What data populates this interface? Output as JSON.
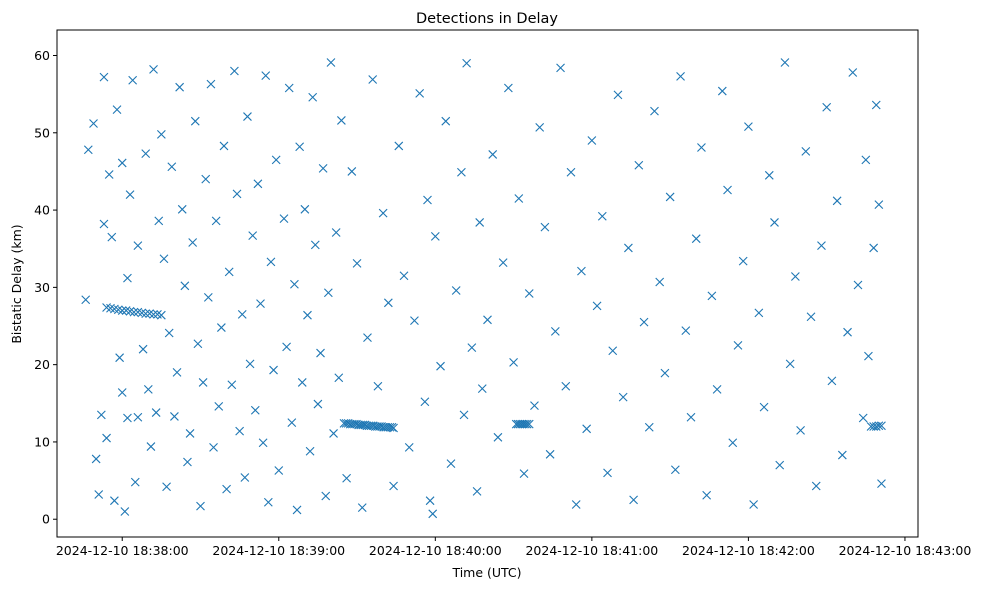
{
  "chart_data": {
    "type": "scatter",
    "title": "Detections in Delay",
    "xlabel": "Time (UTC)",
    "ylabel": "Bistatic Delay (km)",
    "x_units": "seconds after 2024-12-10 18:38:00",
    "xlim": [
      -25,
      305
    ],
    "ylim": [
      -2.3,
      63.3
    ],
    "x_ticks": [
      {
        "value": 0,
        "label": "2024-12-10 18:38:00"
      },
      {
        "value": 60,
        "label": "2024-12-10 18:39:00"
      },
      {
        "value": 120,
        "label": "2024-12-10 18:40:00"
      },
      {
        "value": 180,
        "label": "2024-12-10 18:41:00"
      },
      {
        "value": 240,
        "label": "2024-12-10 18:42:00"
      },
      {
        "value": 300,
        "label": "2024-12-10 18:43:00"
      }
    ],
    "y_ticks": [
      {
        "value": 0,
        "label": "0"
      },
      {
        "value": 10,
        "label": "10"
      },
      {
        "value": 20,
        "label": "20"
      },
      {
        "value": 30,
        "label": "30"
      },
      {
        "value": 40,
        "label": "40"
      },
      {
        "value": 50,
        "label": "50"
      },
      {
        "value": 60,
        "label": "60"
      }
    ],
    "marker": "x",
    "color": "#1f77b4",
    "grid": false,
    "series": [
      {
        "name": "detections",
        "points": [
          [
            -6,
            27.4
          ],
          [
            -4.5,
            27.3
          ],
          [
            -3,
            27.2
          ],
          [
            -1.5,
            27.1
          ],
          [
            0,
            27.0
          ],
          [
            1.5,
            27.0
          ],
          [
            3,
            26.9
          ],
          [
            4.5,
            26.8
          ],
          [
            6,
            26.8
          ],
          [
            7.5,
            26.7
          ],
          [
            9,
            26.6
          ],
          [
            10.5,
            26.6
          ],
          [
            12,
            26.5
          ],
          [
            13.5,
            26.5
          ],
          [
            15,
            26.4
          ],
          [
            85,
            12.4
          ],
          [
            85.8,
            12.4
          ],
          [
            86.6,
            12.4
          ],
          [
            87.4,
            12.3
          ],
          [
            88.2,
            12.3
          ],
          [
            89,
            12.3
          ],
          [
            89.8,
            12.3
          ],
          [
            90.6,
            12.2
          ],
          [
            91.4,
            12.2
          ],
          [
            92.2,
            12.2
          ],
          [
            93,
            12.2
          ],
          [
            93.8,
            12.1
          ],
          [
            94.6,
            12.1
          ],
          [
            95.4,
            12.1
          ],
          [
            96.2,
            12.1
          ],
          [
            97,
            12.0
          ],
          [
            97.8,
            12.0
          ],
          [
            98.6,
            12.0
          ],
          [
            99.4,
            12.0
          ],
          [
            100.2,
            11.9
          ],
          [
            101,
            11.9
          ],
          [
            101.8,
            11.9
          ],
          [
            102.6,
            11.9
          ],
          [
            103.4,
            11.9
          ],
          [
            104,
            11.8
          ],
          [
            151,
            12.3
          ],
          [
            151.7,
            12.3
          ],
          [
            152.4,
            12.3
          ],
          [
            153.1,
            12.3
          ],
          [
            153.8,
            12.3
          ],
          [
            154.5,
            12.3
          ],
          [
            155.2,
            12.3
          ],
          [
            156,
            12.3
          ],
          [
            287,
            12.0
          ],
          [
            288,
            12.0
          ],
          [
            289,
            12.0
          ],
          [
            290,
            12.1
          ],
          [
            291,
            12.1
          ],
          [
            -14,
            28.4
          ],
          [
            -13,
            47.8
          ],
          [
            -11,
            51.2
          ],
          [
            -10,
            7.8
          ],
          [
            -9,
            3.2
          ],
          [
            -8,
            13.5
          ],
          [
            -7,
            57.2
          ],
          [
            -7,
            38.2
          ],
          [
            -6,
            10.5
          ],
          [
            -5,
            44.6
          ],
          [
            -4,
            36.5
          ],
          [
            -3,
            2.4
          ],
          [
            -2,
            53.0
          ],
          [
            -1,
            20.9
          ],
          [
            0,
            16.4
          ],
          [
            0,
            46.1
          ],
          [
            1,
            1.0
          ],
          [
            2,
            13.1
          ],
          [
            2,
            31.2
          ],
          [
            3,
            42.0
          ],
          [
            4,
            56.8
          ],
          [
            5,
            4.8
          ],
          [
            6,
            35.4
          ],
          [
            6,
            13.2
          ],
          [
            8,
            22.0
          ],
          [
            9,
            47.3
          ],
          [
            10,
            16.8
          ],
          [
            11,
            9.4
          ],
          [
            12,
            58.2
          ],
          [
            13,
            13.8
          ],
          [
            14,
            38.6
          ],
          [
            15,
            49.8
          ],
          [
            16,
            33.7
          ],
          [
            17,
            4.2
          ],
          [
            18,
            24.1
          ],
          [
            19,
            45.6
          ],
          [
            20,
            13.3
          ],
          [
            21,
            19.0
          ],
          [
            22,
            55.9
          ],
          [
            23,
            40.1
          ],
          [
            24,
            30.2
          ],
          [
            25,
            7.4
          ],
          [
            26,
            11.1
          ],
          [
            27,
            35.8
          ],
          [
            28,
            51.5
          ],
          [
            29,
            22.7
          ],
          [
            30,
            1.7
          ],
          [
            31,
            17.7
          ],
          [
            32,
            44.0
          ],
          [
            33,
            28.7
          ],
          [
            34,
            56.3
          ],
          [
            35,
            9.3
          ],
          [
            36,
            38.6
          ],
          [
            37,
            14.6
          ],
          [
            38,
            24.8
          ],
          [
            39,
            48.3
          ],
          [
            40,
            3.9
          ],
          [
            41,
            32.0
          ],
          [
            42,
            17.4
          ],
          [
            43,
            58.0
          ],
          [
            44,
            42.1
          ],
          [
            45,
            11.4
          ],
          [
            46,
            26.5
          ],
          [
            47,
            5.4
          ],
          [
            48,
            52.1
          ],
          [
            49,
            20.1
          ],
          [
            50,
            36.7
          ],
          [
            51,
            14.1
          ],
          [
            52,
            43.4
          ],
          [
            53,
            27.9
          ],
          [
            54,
            9.9
          ],
          [
            55,
            57.4
          ],
          [
            56,
            2.2
          ],
          [
            57,
            33.3
          ],
          [
            58,
            19.3
          ],
          [
            59,
            46.5
          ],
          [
            60,
            6.3
          ],
          [
            62,
            38.9
          ],
          [
            63,
            22.3
          ],
          [
            64,
            55.8
          ],
          [
            65,
            12.5
          ],
          [
            66,
            30.4
          ],
          [
            67,
            1.2
          ],
          [
            68,
            48.2
          ],
          [
            69,
            17.7
          ],
          [
            70,
            40.1
          ],
          [
            71,
            26.4
          ],
          [
            72,
            8.8
          ],
          [
            73,
            54.6
          ],
          [
            74,
            35.5
          ],
          [
            75,
            14.9
          ],
          [
            76,
            21.5
          ],
          [
            77,
            45.4
          ],
          [
            78,
            3.0
          ],
          [
            79,
            29.3
          ],
          [
            80,
            59.1
          ],
          [
            81,
            11.1
          ],
          [
            82,
            37.1
          ],
          [
            83,
            18.3
          ],
          [
            84,
            51.6
          ],
          [
            86,
            5.3
          ],
          [
            88,
            45.0
          ],
          [
            90,
            33.1
          ],
          [
            92,
            1.5
          ],
          [
            94,
            23.5
          ],
          [
            96,
            56.9
          ],
          [
            98,
            17.2
          ],
          [
            100,
            39.6
          ],
          [
            102,
            28.0
          ],
          [
            104,
            4.3
          ],
          [
            106,
            48.3
          ],
          [
            108,
            31.5
          ],
          [
            110,
            9.3
          ],
          [
            112,
            25.7
          ],
          [
            114,
            55.1
          ],
          [
            116,
            15.2
          ],
          [
            117,
            41.3
          ],
          [
            118,
            2.4
          ],
          [
            119,
            0.7
          ],
          [
            120,
            36.6
          ],
          [
            122,
            19.8
          ],
          [
            124,
            51.5
          ],
          [
            126,
            7.2
          ],
          [
            128,
            29.6
          ],
          [
            130,
            44.9
          ],
          [
            131,
            13.5
          ],
          [
            132,
            59.0
          ],
          [
            134,
            22.2
          ],
          [
            136,
            3.6
          ],
          [
            137,
            38.4
          ],
          [
            138,
            16.9
          ],
          [
            140,
            25.8
          ],
          [
            142,
            47.2
          ],
          [
            144,
            10.6
          ],
          [
            146,
            33.2
          ],
          [
            148,
            55.8
          ],
          [
            150,
            20.3
          ],
          [
            152,
            41.5
          ],
          [
            154,
            5.9
          ],
          [
            156,
            29.2
          ],
          [
            158,
            14.7
          ],
          [
            160,
            50.7
          ],
          [
            162,
            37.8
          ],
          [
            164,
            8.4
          ],
          [
            166,
            24.3
          ],
          [
            168,
            58.4
          ],
          [
            170,
            17.2
          ],
          [
            172,
            44.9
          ],
          [
            174,
            1.9
          ],
          [
            176,
            32.1
          ],
          [
            178,
            11.7
          ],
          [
            180,
            49.0
          ],
          [
            182,
            27.6
          ],
          [
            184,
            39.2
          ],
          [
            186,
            6.0
          ],
          [
            188,
            21.8
          ],
          [
            190,
            54.9
          ],
          [
            192,
            15.8
          ],
          [
            194,
            35.1
          ],
          [
            196,
            2.5
          ],
          [
            198,
            45.8
          ],
          [
            200,
            25.5
          ],
          [
            202,
            11.9
          ],
          [
            204,
            52.8
          ],
          [
            206,
            30.7
          ],
          [
            208,
            18.9
          ],
          [
            210,
            41.7
          ],
          [
            212,
            6.4
          ],
          [
            214,
            57.3
          ],
          [
            216,
            24.4
          ],
          [
            218,
            13.2
          ],
          [
            220,
            36.3
          ],
          [
            222,
            48.1
          ],
          [
            224,
            3.1
          ],
          [
            226,
            28.9
          ],
          [
            228,
            16.8
          ],
          [
            230,
            55.4
          ],
          [
            232,
            42.6
          ],
          [
            234,
            9.9
          ],
          [
            236,
            22.5
          ],
          [
            238,
            33.4
          ],
          [
            240,
            50.8
          ],
          [
            242,
            1.9
          ],
          [
            244,
            26.7
          ],
          [
            246,
            14.5
          ],
          [
            248,
            44.5
          ],
          [
            250,
            38.4
          ],
          [
            252,
            7.0
          ],
          [
            254,
            59.1
          ],
          [
            256,
            20.1
          ],
          [
            258,
            31.4
          ],
          [
            260,
            11.5
          ],
          [
            262,
            47.6
          ],
          [
            264,
            26.2
          ],
          [
            266,
            4.3
          ],
          [
            268,
            35.4
          ],
          [
            270,
            53.3
          ],
          [
            272,
            17.9
          ],
          [
            274,
            41.2
          ],
          [
            276,
            8.3
          ],
          [
            278,
            24.2
          ],
          [
            280,
            57.8
          ],
          [
            282,
            30.3
          ],
          [
            284,
            13.1
          ],
          [
            285,
            46.5
          ],
          [
            286,
            21.1
          ],
          [
            288,
            35.1
          ],
          [
            289,
            53.6
          ],
          [
            290,
            40.7
          ],
          [
            291,
            4.6
          ]
        ]
      }
    ]
  }
}
